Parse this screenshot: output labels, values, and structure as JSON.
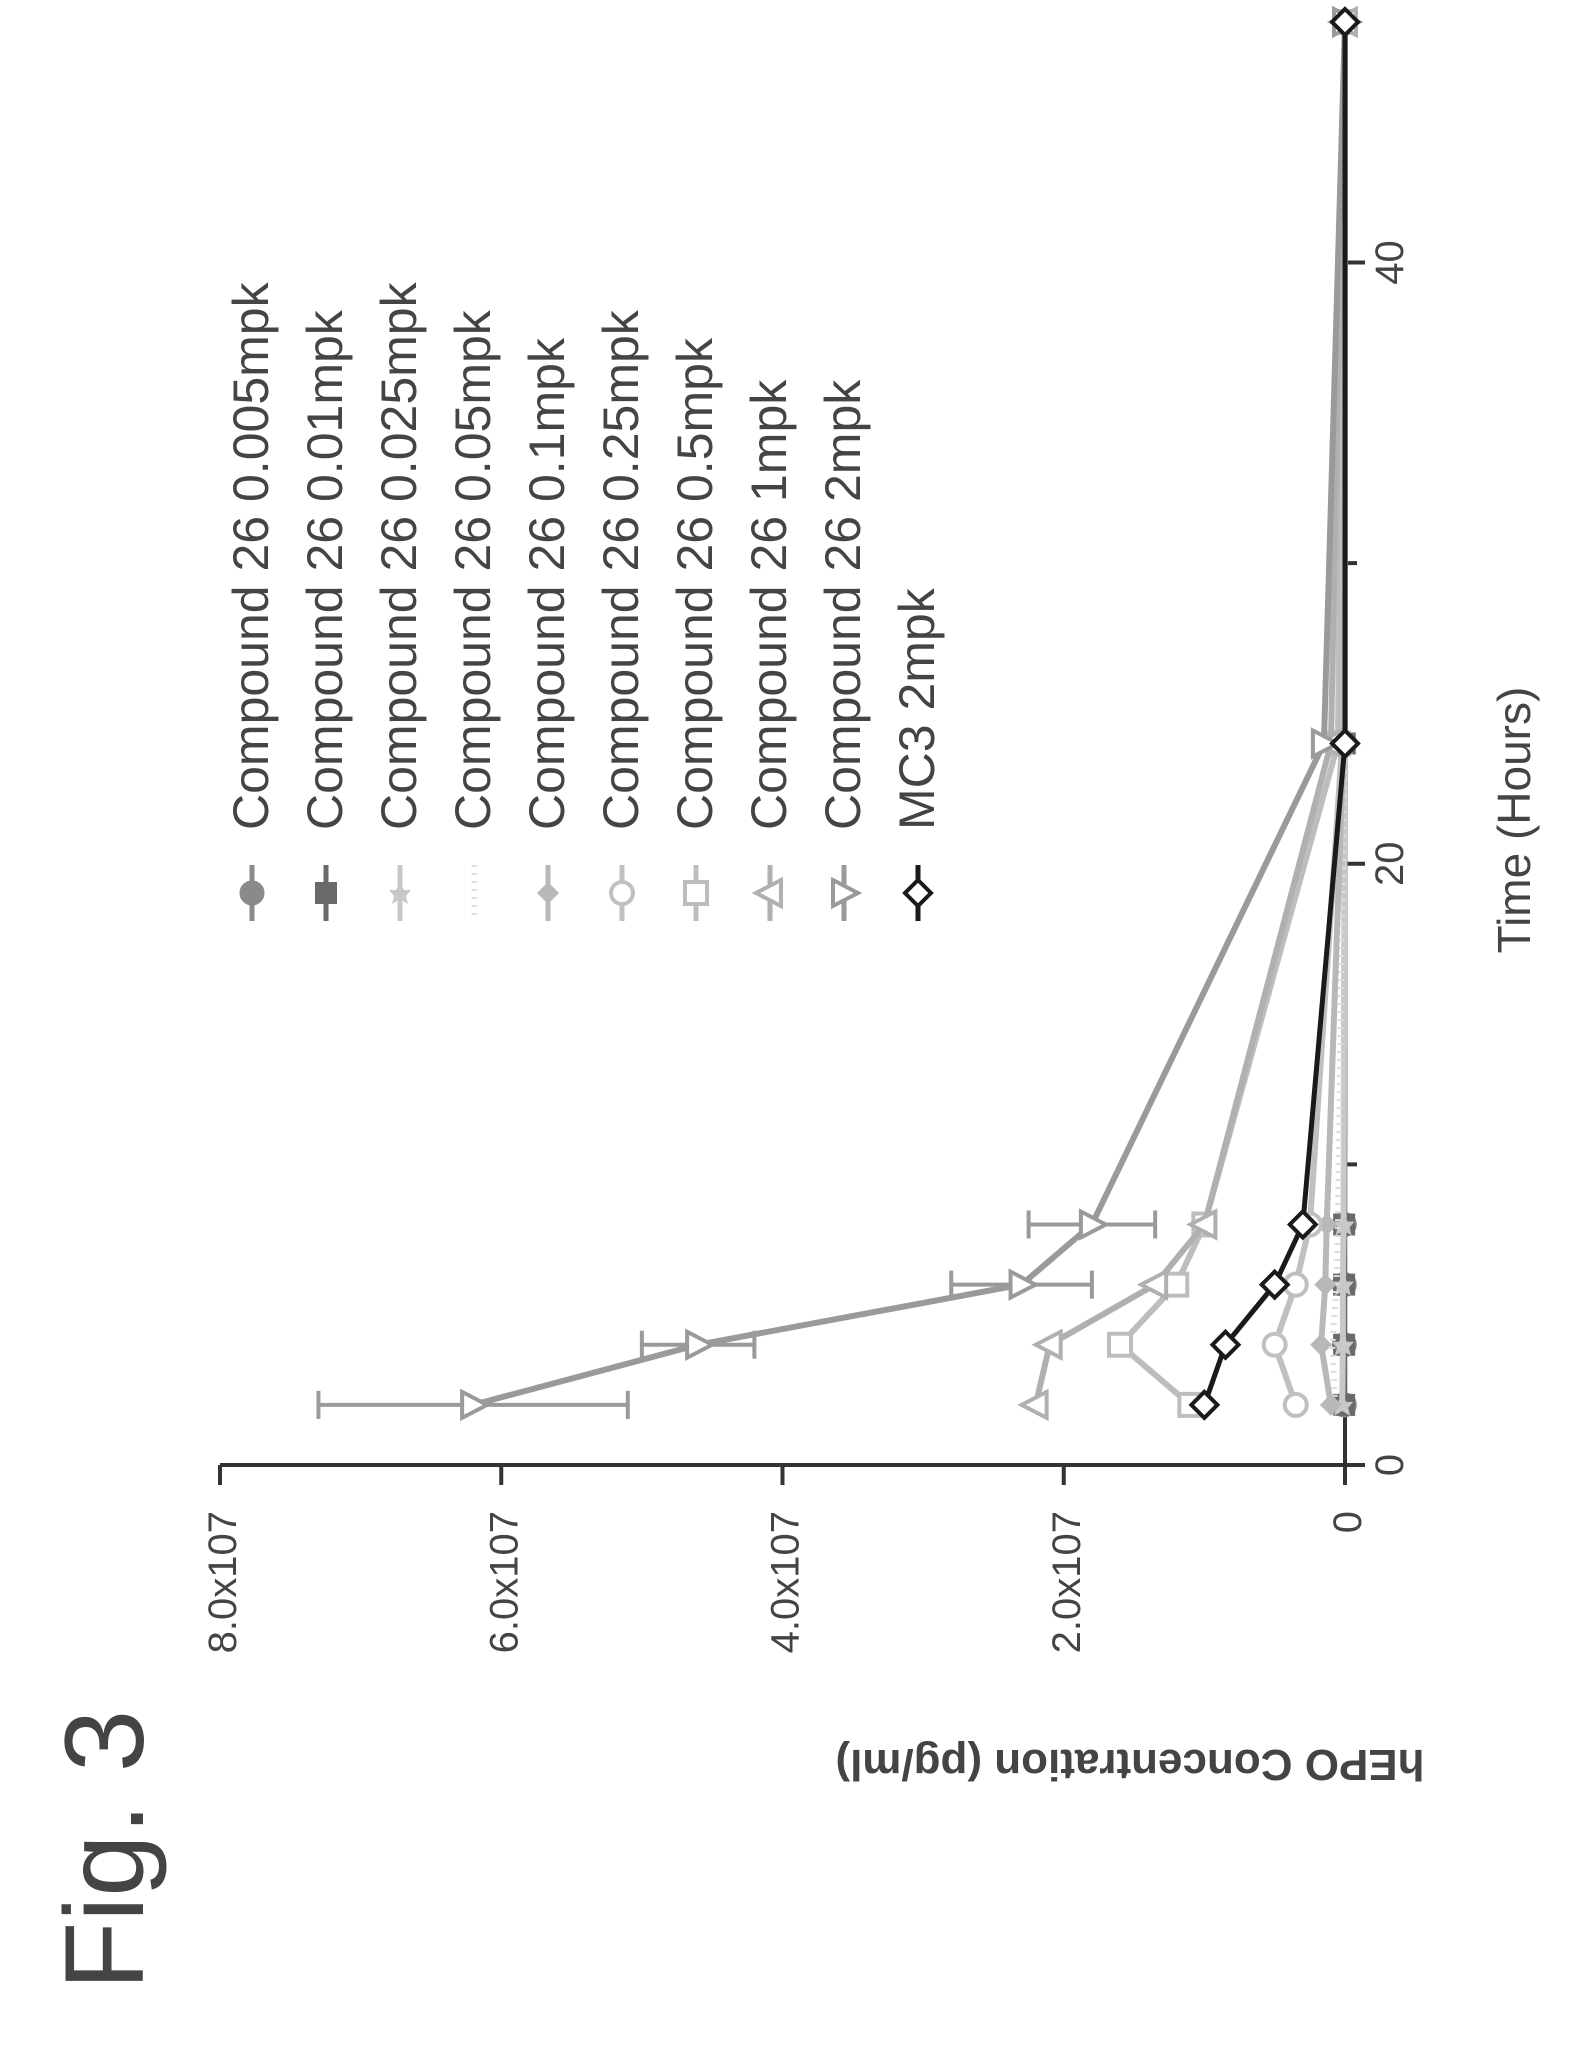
{
  "figure_label": "Fig. 3",
  "chart_data": {
    "type": "line",
    "xlabel": "Time (Hours)",
    "ylabel": "hEPO Concentration (pg/ml)",
    "xlim": [
      0,
      48
    ],
    "ylim": [
      0,
      80000000
    ],
    "x_ticks": [
      "0",
      "20",
      "40"
    ],
    "y_ticks": [
      "0",
      "2.0x107",
      "4.0x107",
      "6.0x107",
      "8.0x107"
    ],
    "x": [
      2,
      4,
      6,
      8,
      24,
      48
    ],
    "series": [
      {
        "name": "Compound 26 0.005mpk",
        "marker": "circle-filled",
        "color": "#8a8a8a",
        "values": [
          50000,
          50000,
          50000,
          50000,
          20000,
          0
        ]
      },
      {
        "name": "Compound 26 0.01mpk",
        "marker": "square-filled",
        "color": "#6a6a6a",
        "values": [
          60000,
          60000,
          60000,
          60000,
          20000,
          0
        ]
      },
      {
        "name": "Compound 26 0.025mpk",
        "marker": "star",
        "color": "#c8c8c8",
        "values": [
          200000,
          150000,
          150000,
          100000,
          20000,
          0
        ]
      },
      {
        "name": "Compound 26 0.05mpk",
        "marker": "dotted",
        "color": "#dddddd",
        "values": [
          700000,
          900000,
          600000,
          500000,
          50000,
          0
        ]
      },
      {
        "name": "Compound 26 0.1mpk",
        "marker": "diamond-filled",
        "color": "#b8b8b8",
        "values": [
          1000000,
          1700000,
          1400000,
          1300000,
          100000,
          0
        ]
      },
      {
        "name": "Compound 26 0.25mpk",
        "marker": "circle-open",
        "color": "#c0c0c0",
        "values": [
          3500000,
          5000000,
          3500000,
          2500000,
          200000,
          0
        ]
      },
      {
        "name": "Compound 26 0.5mpk",
        "marker": "square-open",
        "color": "#bdbdbd",
        "values": [
          11000000,
          16000000,
          12000000,
          10000000,
          500000,
          0
        ]
      },
      {
        "name": "Compound 26 1mpk",
        "marker": "triangle-up-open",
        "color": "#b0b0b0",
        "values": [
          22000000,
          21000000,
          13500000,
          10000000,
          1000000,
          0
        ]
      },
      {
        "name": "Compound 26 2mpk",
        "marker": "triangle-down-open",
        "color": "#9a9a9a",
        "values": [
          62000000,
          46000000,
          23000000,
          18000000,
          1500000,
          0
        ],
        "errors": [
          11000000,
          4000000,
          5000000,
          4500000,
          0,
          0
        ]
      },
      {
        "name": "MC3 2mpk",
        "marker": "diamond-open",
        "color": "#1a1a1a",
        "values": [
          10000000,
          8500000,
          5000000,
          3000000,
          0,
          0
        ]
      }
    ]
  }
}
